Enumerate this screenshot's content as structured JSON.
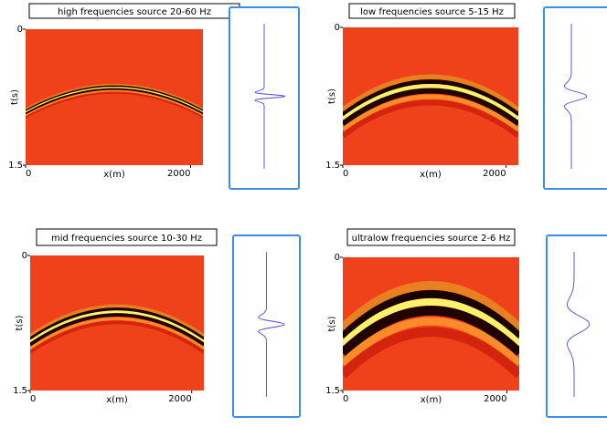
{
  "chart_data": [
    {
      "type": "heatmap",
      "title": "high frequencies source 20-60 Hz",
      "xlabel": "x(m)",
      "ylabel": "t(s)",
      "xlim": [
        0,
        2150
      ],
      "ylim": [
        0,
        1.5
      ],
      "xticks": [
        0,
        2000
      ],
      "yticks": [
        0,
        1.5
      ]
    },
    {
      "type": "heatmap",
      "title": "low frequencies source 5-15 Hz",
      "xlabel": "x(m)",
      "ylabel": "t(s)",
      "xlim": [
        0,
        2150
      ],
      "ylim": [
        0,
        1.5
      ],
      "xticks": [
        0,
        2000
      ],
      "yticks": [
        0,
        1.5
      ]
    },
    {
      "type": "heatmap",
      "title": "mid frequencies source 10-30 Hz",
      "xlabel": "x(m)",
      "ylabel": "t(s)",
      "xlim": [
        0,
        2150
      ],
      "ylim": [
        0,
        1.5
      ],
      "xticks": [
        0,
        2000
      ],
      "yticks": [
        0,
        1.5
      ]
    },
    {
      "type": "heatmap",
      "title": "ultralow frequencies source 2-6 Hz",
      "xlabel": "x(m)",
      "ylabel": "t(s)",
      "xlim": [
        0,
        2150
      ],
      "ylim": [
        0,
        1.5
      ],
      "xticks": [
        0,
        2000
      ],
      "yticks": [
        0,
        1.5
      ]
    }
  ]
}
